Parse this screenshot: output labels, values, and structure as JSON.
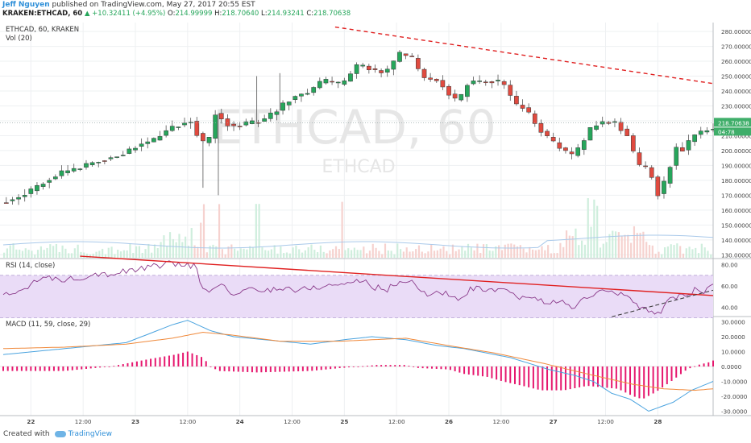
{
  "header": {
    "author": "Jeff Nguyen",
    "published": "published on TradingView.com, May 27, 2017 20:55 EST",
    "symbol": "KRAKEN:ETHCAD, 60",
    "change": "▲ +10.32411 (+4.95%)",
    "o_label": "O:",
    "o": "214.99999",
    "h_label": "H:",
    "h": "218.70640",
    "l_label": "L:",
    "l": "214.93241",
    "c_label": "C:",
    "c": "218.70638"
  },
  "legend": {
    "main": "ETHCAD, 60, KRAKEN",
    "vol": "Vol (20)",
    "rsi": "RSI (14, close)",
    "macd": "MACD (11, 59, close, 29)"
  },
  "watermark": {
    "big": "ETHCAD, 60",
    "small": "ETHCAD"
  },
  "footer": {
    "created": "Created with",
    "brand": "TradingView"
  },
  "colors": {
    "up": "#26a65b",
    "down": "#e04a3f",
    "trend": "#e02020",
    "rsi_line": "#8a3a8a",
    "rsi_band": "#eadcf7",
    "macd_line": "#4aa3df",
    "signal_line": "#f08a3c",
    "hist": "#e6176e"
  },
  "chart_data": [
    {
      "type": "candlestick",
      "title": "ETHCAD, 60, KRAKEN",
      "ylim": [
        128,
        286
      ],
      "y_ticks": [
        "280.000000",
        "270.000000",
        "260.000000",
        "250.000000",
        "240.000000",
        "230.000000",
        "220.000000",
        "210.000000",
        "200.000000",
        "190.000000",
        "180.000000",
        "170.000000",
        "160.000000",
        "150.000000",
        "140.000000",
        "130.000000"
      ],
      "x_ticks": [
        "12:00",
        "22",
        "12:00",
        "23",
        "12:00",
        "24",
        "12:00",
        "25",
        "12:00",
        "26",
        "12:00",
        "27",
        "12:00",
        "28"
      ],
      "last_price_label": "218.70638",
      "countdown_label": "04:78",
      "close_path": [
        [
          0,
          165
        ],
        [
          10,
          168
        ],
        [
          20,
          173
        ],
        [
          30,
          180
        ],
        [
          40,
          185
        ],
        [
          50,
          188
        ],
        [
          60,
          192
        ],
        [
          70,
          195
        ],
        [
          80,
          198
        ],
        [
          90,
          204
        ],
        [
          100,
          207
        ],
        [
          110,
          215
        ],
        [
          118,
          218
        ],
        [
          125,
          220
        ],
        [
          130,
          206
        ],
        [
          135,
          204
        ],
        [
          140,
          225
        ],
        [
          150,
          216
        ],
        [
          160,
          218
        ],
        [
          170,
          220
        ],
        [
          180,
          227
        ],
        [
          190,
          236
        ],
        [
          200,
          239
        ],
        [
          210,
          247
        ],
        [
          222,
          244
        ],
        [
          233,
          258
        ],
        [
          240,
          255
        ],
        [
          250,
          252
        ],
        [
          260,
          265
        ],
        [
          268,
          262
        ],
        [
          275,
          249
        ],
        [
          285,
          247
        ],
        [
          292,
          238
        ],
        [
          298,
          232
        ],
        [
          305,
          247
        ],
        [
          313,
          246
        ],
        [
          323,
          247
        ],
        [
          328,
          244
        ],
        [
          335,
          231
        ],
        [
          342,
          228
        ],
        [
          350,
          215
        ],
        [
          358,
          207
        ],
        [
          365,
          201
        ],
        [
          373,
          196
        ],
        [
          380,
          207
        ],
        [
          385,
          216
        ],
        [
          390,
          219
        ],
        [
          400,
          219
        ],
        [
          408,
          210
        ],
        [
          415,
          190
        ],
        [
          422,
          188
        ],
        [
          428,
          171
        ],
        [
          432,
          178
        ],
        [
          440,
          202
        ],
        [
          445,
          200
        ],
        [
          450,
          210
        ],
        [
          455,
          212
        ],
        [
          462,
          215
        ]
      ],
      "resistance_line": {
        "from": [
          "May 24 ~02:00",
          283
        ],
        "to": [
          "May 28 ~03:00",
          245
        ]
      },
      "volume": {
        "label": "Vol (20)",
        "spikes_at": [
          "May 22 ~00:00",
          "May 22 ~12:00",
          "May 23 ~00:00",
          "May 27 ~03:00",
          "May 27 ~06:00"
        ]
      }
    },
    {
      "type": "line",
      "title": "RSI (14, close)",
      "ylim": [
        32,
        85
      ],
      "y_ticks": [
        "80.00",
        "60.00",
        "40.00"
      ],
      "band": [
        30,
        70
      ],
      "values": [
        [
          0,
          50
        ],
        [
          10,
          55
        ],
        [
          20,
          64
        ],
        [
          30,
          67
        ],
        [
          40,
          66
        ],
        [
          50,
          68
        ],
        [
          60,
          72
        ],
        [
          70,
          71
        ],
        [
          80,
          74
        ],
        [
          90,
          76
        ],
        [
          100,
          79
        ],
        [
          110,
          81
        ],
        [
          118,
          80
        ],
        [
          125,
          79
        ],
        [
          130,
          56
        ],
        [
          135,
          52
        ],
        [
          140,
          63
        ],
        [
          150,
          51
        ],
        [
          160,
          57
        ],
        [
          170,
          55
        ],
        [
          180,
          59
        ],
        [
          190,
          56
        ],
        [
          200,
          58
        ],
        [
          210,
          60
        ],
        [
          222,
          62
        ],
        [
          233,
          66
        ],
        [
          240,
          59
        ],
        [
          250,
          57
        ],
        [
          260,
          65
        ],
        [
          268,
          63
        ],
        [
          275,
          51
        ],
        [
          285,
          55
        ],
        [
          292,
          50
        ],
        [
          298,
          46
        ],
        [
          305,
          58
        ],
        [
          313,
          56
        ],
        [
          323,
          55
        ],
        [
          328,
          54
        ],
        [
          335,
          49
        ],
        [
          342,
          50
        ],
        [
          350,
          46
        ],
        [
          358,
          45
        ],
        [
          365,
          44
        ],
        [
          373,
          40
        ],
        [
          380,
          50
        ],
        [
          385,
          53
        ],
        [
          390,
          55
        ],
        [
          400,
          53
        ],
        [
          408,
          48
        ],
        [
          415,
          38
        ],
        [
          422,
          38
        ],
        [
          428,
          33
        ],
        [
          432,
          44
        ],
        [
          440,
          52
        ],
        [
          445,
          50
        ],
        [
          450,
          56
        ],
        [
          455,
          55
        ],
        [
          462,
          60
        ]
      ],
      "trendlines": [
        {
          "style": "solid",
          "from": [
            "May 21 ~14:00",
            88
          ],
          "to": [
            "May 28 ~04:00",
            51
          ]
        },
        {
          "style": "dashed",
          "from": [
            "May 27 ~08:00",
            31
          ],
          "to": [
            "May 28 ~04:00",
            56
          ]
        }
      ]
    },
    {
      "type": "line+histogram",
      "title": "MACD (11, 59, close, 29)",
      "ylim": [
        -33,
        33
      ],
      "y_ticks": [
        "30.0000",
        "20.0000",
        "10.0000",
        "0.0000",
        "-10.0000",
        "-20.0000",
        "-30.0000"
      ],
      "series": [
        {
          "name": "MACD",
          "values": [
            [
              0,
              8
            ],
            [
              40,
              12
            ],
            [
              80,
              16
            ],
            [
              110,
              28
            ],
            [
              120,
              31
            ],
            [
              135,
              24
            ],
            [
              150,
              20
            ],
            [
              170,
              18
            ],
            [
              200,
              15
            ],
            [
              222,
              18
            ],
            [
              240,
              20
            ],
            [
              262,
              18
            ],
            [
              283,
              14
            ],
            [
              300,
              12
            ],
            [
              330,
              6
            ],
            [
              355,
              -2
            ],
            [
              372,
              -6
            ],
            [
              384,
              -10
            ],
            [
              396,
              -18
            ],
            [
              408,
              -22
            ],
            [
              420,
              -30
            ],
            [
              436,
              -24
            ],
            [
              448,
              -16
            ],
            [
              462,
              -10
            ]
          ]
        },
        {
          "name": "Signal",
          "values": [
            [
              0,
              12
            ],
            [
              40,
              13
            ],
            [
              80,
              15
            ],
            [
              110,
              19
            ],
            [
              130,
              23
            ],
            [
              150,
              21
            ],
            [
              180,
              17
            ],
            [
              220,
              17
            ],
            [
              262,
              19
            ],
            [
              290,
              14
            ],
            [
              320,
              9
            ],
            [
              352,
              2
            ],
            [
              380,
              -5
            ],
            [
              410,
              -12
            ],
            [
              430,
              -15
            ],
            [
              450,
              -16
            ],
            [
              462,
              -15
            ]
          ]
        }
      ],
      "histogram_profile": [
        [
          0,
          -3
        ],
        [
          40,
          -3
        ],
        [
          70,
          0
        ],
        [
          80,
          2
        ],
        [
          95,
          5
        ],
        [
          112,
          8
        ],
        [
          120,
          10
        ],
        [
          130,
          6
        ],
        [
          135,
          0
        ],
        [
          140,
          -3
        ],
        [
          165,
          -4
        ],
        [
          200,
          -3
        ],
        [
          220,
          -1
        ],
        [
          243,
          1
        ],
        [
          262,
          1
        ],
        [
          270,
          -1
        ],
        [
          290,
          -2
        ],
        [
          300,
          -5
        ],
        [
          315,
          -7
        ],
        [
          325,
          -10
        ],
        [
          338,
          -13
        ],
        [
          350,
          -16
        ],
        [
          365,
          -16
        ],
        [
          380,
          -13
        ],
        [
          390,
          -14
        ],
        [
          400,
          -15
        ],
        [
          410,
          -20
        ],
        [
          416,
          -22
        ],
        [
          425,
          -17
        ],
        [
          436,
          -9
        ],
        [
          445,
          -2
        ],
        [
          452,
          1
        ],
        [
          460,
          3
        ],
        [
          462,
          4
        ]
      ]
    }
  ]
}
